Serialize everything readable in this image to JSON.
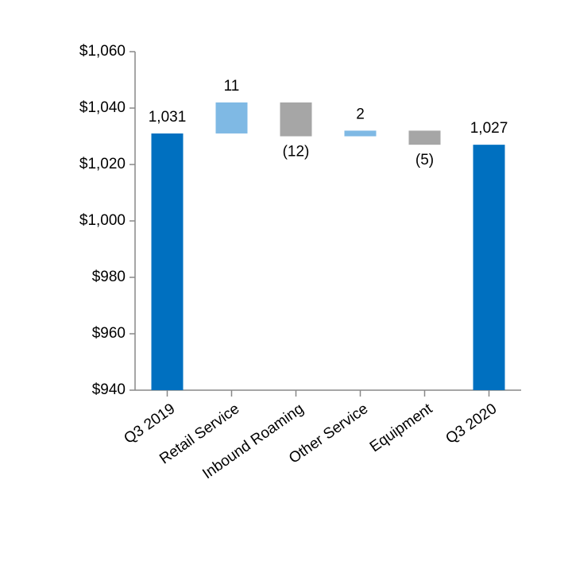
{
  "chart_data": {
    "type": "waterfall",
    "categories": [
      "Q3 2019",
      "Retail Service",
      "Inbound Roaming",
      "Other Service",
      "Equipment",
      "Q3 2020"
    ],
    "values": [
      1031,
      11,
      -12,
      2,
      -5,
      1027
    ],
    "value_labels": [
      "1,031",
      "11",
      "(12)",
      "2",
      "(5)",
      "1,027"
    ],
    "measure": [
      "total",
      "relative",
      "relative",
      "relative",
      "relative",
      "total"
    ],
    "colors": {
      "total": "#0070c0",
      "increase": "#7fb9e4",
      "decrease": "#a6a6a6"
    },
    "ylim": [
      940,
      1060
    ],
    "yticks": [
      {
        "value": 940,
        "label": "$940"
      },
      {
        "value": 960,
        "label": "$960"
      },
      {
        "value": 980,
        "label": "$980"
      },
      {
        "value": 1000,
        "label": "$1,000"
      },
      {
        "value": 1020,
        "label": "$1,020"
      },
      {
        "value": 1040,
        "label": "$1,040"
      },
      {
        "value": 1060,
        "label": "$1,060"
      }
    ],
    "grid": false
  }
}
